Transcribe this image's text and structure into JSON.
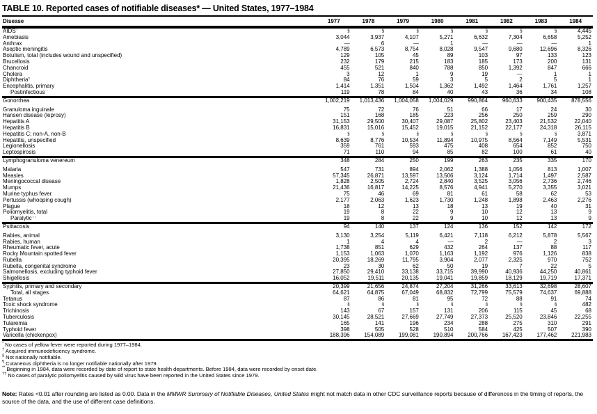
{
  "title": "TABLE 10. Reported cases of notifiable diseases* — United States, 1977–1984",
  "table": {
    "columns": [
      "Disease",
      "1977",
      "1978",
      "1979",
      "1980",
      "1981",
      "1982",
      "1983",
      "1984"
    ],
    "not_notifiable_symbol": "§",
    "groups": [
      {
        "rows": [
          {
            "disease": "AIDS",
            "marker": "†",
            "values": [
              "§",
              "§",
              "§",
              "§",
              "§",
              "§",
              "§",
              "4,445"
            ]
          },
          {
            "disease": "Amebiasis",
            "values": [
              "3,044",
              "3,937",
              "4,107",
              "5,271",
              "6,632",
              "7,304",
              "6,658",
              "5,252"
            ]
          },
          {
            "disease": "Anthrax",
            "values": [
              "—",
              "6",
              "—",
              "1",
              "—",
              "—",
              "—",
              "1"
            ]
          },
          {
            "disease": "Aseptic meningitis",
            "values": [
              "4,789",
              "6,573",
              "8,754",
              "8,028",
              "9,547",
              "9,680",
              "12,696",
              "8,326"
            ]
          },
          {
            "disease": "Botulism, total (includes wound and unspecified)",
            "values": [
              "129",
              "105",
              "45",
              "89",
              "103",
              "97",
              "133",
              "123"
            ]
          },
          {
            "disease": "Brucellosis",
            "values": [
              "232",
              "179",
              "215",
              "183",
              "185",
              "173",
              "200",
              "131"
            ]
          },
          {
            "disease": "Chancroid",
            "values": [
              "455",
              "521",
              "840",
              "788",
              "850",
              "1,392",
              "847",
              "666"
            ]
          },
          {
            "disease": "Cholera",
            "values": [
              "3",
              "12",
              "1",
              "9",
              "19",
              "—",
              "1",
              "1"
            ]
          },
          {
            "disease": "Diphtheria",
            "marker": "¶",
            "values": [
              "84",
              "76",
              "59",
              "3",
              "5",
              "2",
              "5",
              "1"
            ]
          },
          {
            "disease": "Encephalitis, primary",
            "values": [
              "1,414",
              "1,351",
              "1,504",
              "1,362",
              "1,492",
              "1,464",
              "1,761",
              "1,257"
            ]
          },
          {
            "disease": "Postinfectious",
            "marker": "**",
            "indent": true,
            "values": [
              "119",
              "78",
              "84",
              "40",
              "43",
              "36",
              "34",
              "108"
            ]
          }
        ]
      },
      {
        "rows": [
          {
            "disease": "Gonorrhea",
            "values": [
              "1,002,219",
              "1,013,436",
              "1,004,058",
              "1,004,029",
              "990,864",
              "960,633",
              "900,435",
              "878,556"
            ]
          },
          {
            "disease": "Granuloma inguinale",
            "gap": true,
            "values": [
              "75",
              "72",
              "76",
              "51",
              "66",
              "17",
              "24",
              "30"
            ]
          },
          {
            "disease": "Hansen disease (leprosy)",
            "values": [
              "151",
              "168",
              "185",
              "223",
              "256",
              "250",
              "259",
              "290"
            ]
          },
          {
            "disease": "Hepatitis A",
            "values": [
              "31,153",
              "29,500",
              "30,407",
              "29,087",
              "25,802",
              "23,403",
              "21,532",
              "22,040"
            ]
          },
          {
            "disease": "Hepatitis B",
            "values": [
              "16,831",
              "15,016",
              "15,452",
              "19,015",
              "21,152",
              "22,177",
              "24,318",
              "26,115"
            ]
          },
          {
            "disease": "Hepatitis C; non-A, non-B",
            "values": [
              "§",
              "§",
              "§",
              "§",
              "§",
              "§",
              "§",
              "3,871"
            ]
          },
          {
            "disease": "Hepatitis, unspecified",
            "values": [
              "8,639",
              "8,776",
              "10,534",
              "11,894",
              "10,975",
              "8,564",
              "7,149",
              "5,531"
            ]
          },
          {
            "disease": "Legionellosis",
            "values": [
              "359",
              "761",
              "593",
              "475",
              "408",
              "654",
              "852",
              "750"
            ]
          },
          {
            "disease": "Leptospirosis",
            "values": [
              "71",
              "110",
              "94",
              "85",
              "82",
              "100",
              "61",
              "40"
            ]
          }
        ]
      },
      {
        "rows": [
          {
            "disease": "Lymphogranuloma venereum",
            "values": [
              "348",
              "284",
              "250",
              "199",
              "263",
              "235",
              "335",
              "170"
            ]
          },
          {
            "disease": "Malaria",
            "gap": true,
            "values": [
              "547",
              "731",
              "894",
              "2,062",
              "1,388",
              "1,056",
              "813",
              "1,007"
            ]
          },
          {
            "disease": "Measles",
            "values": [
              "57,345",
              "26,871",
              "13,597",
              "13,506",
              "3,124",
              "1,714",
              "1,497",
              "2,587"
            ]
          },
          {
            "disease": "Meningococcal disease",
            "values": [
              "1,828",
              "2,505",
              "2,724",
              "2,840",
              "3,525",
              "3,056",
              "2,736",
              "2,746"
            ]
          },
          {
            "disease": "Mumps",
            "values": [
              "21,436",
              "16,817",
              "14,225",
              "8,576",
              "4,941",
              "5,270",
              "3,355",
              "3,021"
            ]
          },
          {
            "disease": "Murine typhus fever",
            "values": [
              "75",
              "46",
              "69",
              "81",
              "61",
              "58",
              "62",
              "53"
            ]
          },
          {
            "disease": "Pertussis (whooping cough)",
            "values": [
              "2,177",
              "2,063",
              "1,623",
              "1,730",
              "1,248",
              "1,898",
              "2,463",
              "2,276"
            ]
          },
          {
            "disease": "Plague",
            "values": [
              "18",
              "12",
              "13",
              "18",
              "13",
              "19",
              "40",
              "31"
            ]
          },
          {
            "disease": "Poliomyelitis, total",
            "values": [
              "19",
              "8",
              "22",
              "9",
              "10",
              "12",
              "13",
              "9"
            ]
          },
          {
            "disease": "Paralytic",
            "marker": "††",
            "indent": true,
            "values": [
              "19",
              "8",
              "22",
              "9",
              "10",
              "12",
              "13",
              "9"
            ]
          }
        ]
      },
      {
        "rows": [
          {
            "disease": "Psittacosis",
            "values": [
              "94",
              "140",
              "137",
              "124",
              "136",
              "152",
              "142",
              "172"
            ]
          },
          {
            "disease": "Rabies, animal",
            "gap": true,
            "values": [
              "3,130",
              "3,254",
              "5,119",
              "6,421",
              "7,118",
              "6,212",
              "5,878",
              "5,567"
            ]
          },
          {
            "disease": "Rabies, human",
            "values": [
              "1",
              "4",
              "4",
              "—",
              "2",
              "—",
              "2",
              "3"
            ]
          },
          {
            "disease": "Rheumatic fever, acute",
            "values": [
              "1,738",
              "851",
              "629",
              "432",
              "264",
              "137",
              "88",
              "117"
            ]
          },
          {
            "disease": "Rocky Mountain spotted fever",
            "values": [
              "1,153",
              "1,063",
              "1,070",
              "1,163",
              "1,192",
              "976",
              "1,126",
              "838"
            ]
          },
          {
            "disease": "Rubella",
            "values": [
              "20,395",
              "18,269",
              "11,795",
              "3,904",
              "2,077",
              "2,325",
              "970",
              "752"
            ]
          },
          {
            "disease": "Rubella, congenital syndrome",
            "values": [
              "23",
              "30",
              "62",
              "50",
              "19",
              "7",
              "22",
              "5"
            ]
          },
          {
            "disease": "Salmonellosis, excluding typhoid fever",
            "values": [
              "27,850",
              "29,410",
              "33,138",
              "33,715",
              "39,990",
              "40,936",
              "44,250",
              "40,861"
            ]
          },
          {
            "disease": "Shigellosis",
            "values": [
              "16,052",
              "19,511",
              "20,135",
              "19,041",
              "19,859",
              "18,129",
              "19,719",
              "17,371"
            ]
          }
        ]
      },
      {
        "rows": [
          {
            "disease": "Syphilis, primary and secondary",
            "values": [
              "20,399",
              "21,656",
              "24,874",
              "27,204",
              "31,266",
              "33,613",
              "32,698",
              "28,607"
            ]
          },
          {
            "disease": "Total, all stages",
            "indent": true,
            "values": [
              "64,621",
              "64,875",
              "67,049",
              "68,832",
              "72,799",
              "75,579",
              "74,637",
              "69,888"
            ]
          },
          {
            "disease": "Tetanus",
            "values": [
              "87",
              "86",
              "81",
              "95",
              "72",
              "88",
              "91",
              "74"
            ]
          },
          {
            "disease": "Toxic shock syndrome",
            "values": [
              "§",
              "§",
              "§",
              "§",
              "§",
              "§",
              "§",
              "482"
            ]
          },
          {
            "disease": "Trichinosis",
            "values": [
              "143",
              "67",
              "157",
              "131",
              "206",
              "115",
              "45",
              "68"
            ]
          },
          {
            "disease": "Tuberculosis",
            "values": [
              "30,145",
              "28,521",
              "27,669",
              "27,749",
              "27,373",
              "25,520",
              "23,846",
              "22,255"
            ]
          },
          {
            "disease": "Tularemia",
            "values": [
              "165",
              "141",
              "196",
              "234",
              "288",
              "275",
              "310",
              "291"
            ]
          },
          {
            "disease": "Typhoid fever",
            "values": [
              "398",
              "505",
              "528",
              "510",
              "584",
              "425",
              "507",
              "390"
            ]
          },
          {
            "disease": "Varicella (chickenpox)",
            "values": [
              "188,396",
              "154,089",
              "199,081",
              "190,894",
              "200,766",
              "167,423",
              "177,462",
              "221,983"
            ]
          }
        ]
      }
    ]
  },
  "footnotes": [
    {
      "marker": "*",
      "text": "No cases of yellow fever were reported during 1977–1984."
    },
    {
      "marker": "†",
      "text": "Acquired immunodeficiency syndrome."
    },
    {
      "marker": "§",
      "text": "Not nationally notifiable."
    },
    {
      "marker": "¶",
      "text": "Cutaneous diphtheria is no longer notifiable nationally after 1979."
    },
    {
      "marker": "**",
      "text": "Beginning in 1984, data were recorded by date of report to state health departments.  Before 1984, data were recorded by onset date."
    },
    {
      "marker": "††",
      "text": "No cases of paralytic poliomyelitis caused by wild virus have been reported in the United States since 1979."
    }
  ],
  "note": {
    "label": "Note:",
    "before_italic": " Rates <0.01 after rounding are listed as 0.00. Data in the ",
    "italic": "MMWR Summary of Notifiable Diseases, United States",
    "after_italic": " might not match data in other CDC surveillance reports because of differences in the timing of reports, the source of the data, and the use of different case definitions."
  }
}
